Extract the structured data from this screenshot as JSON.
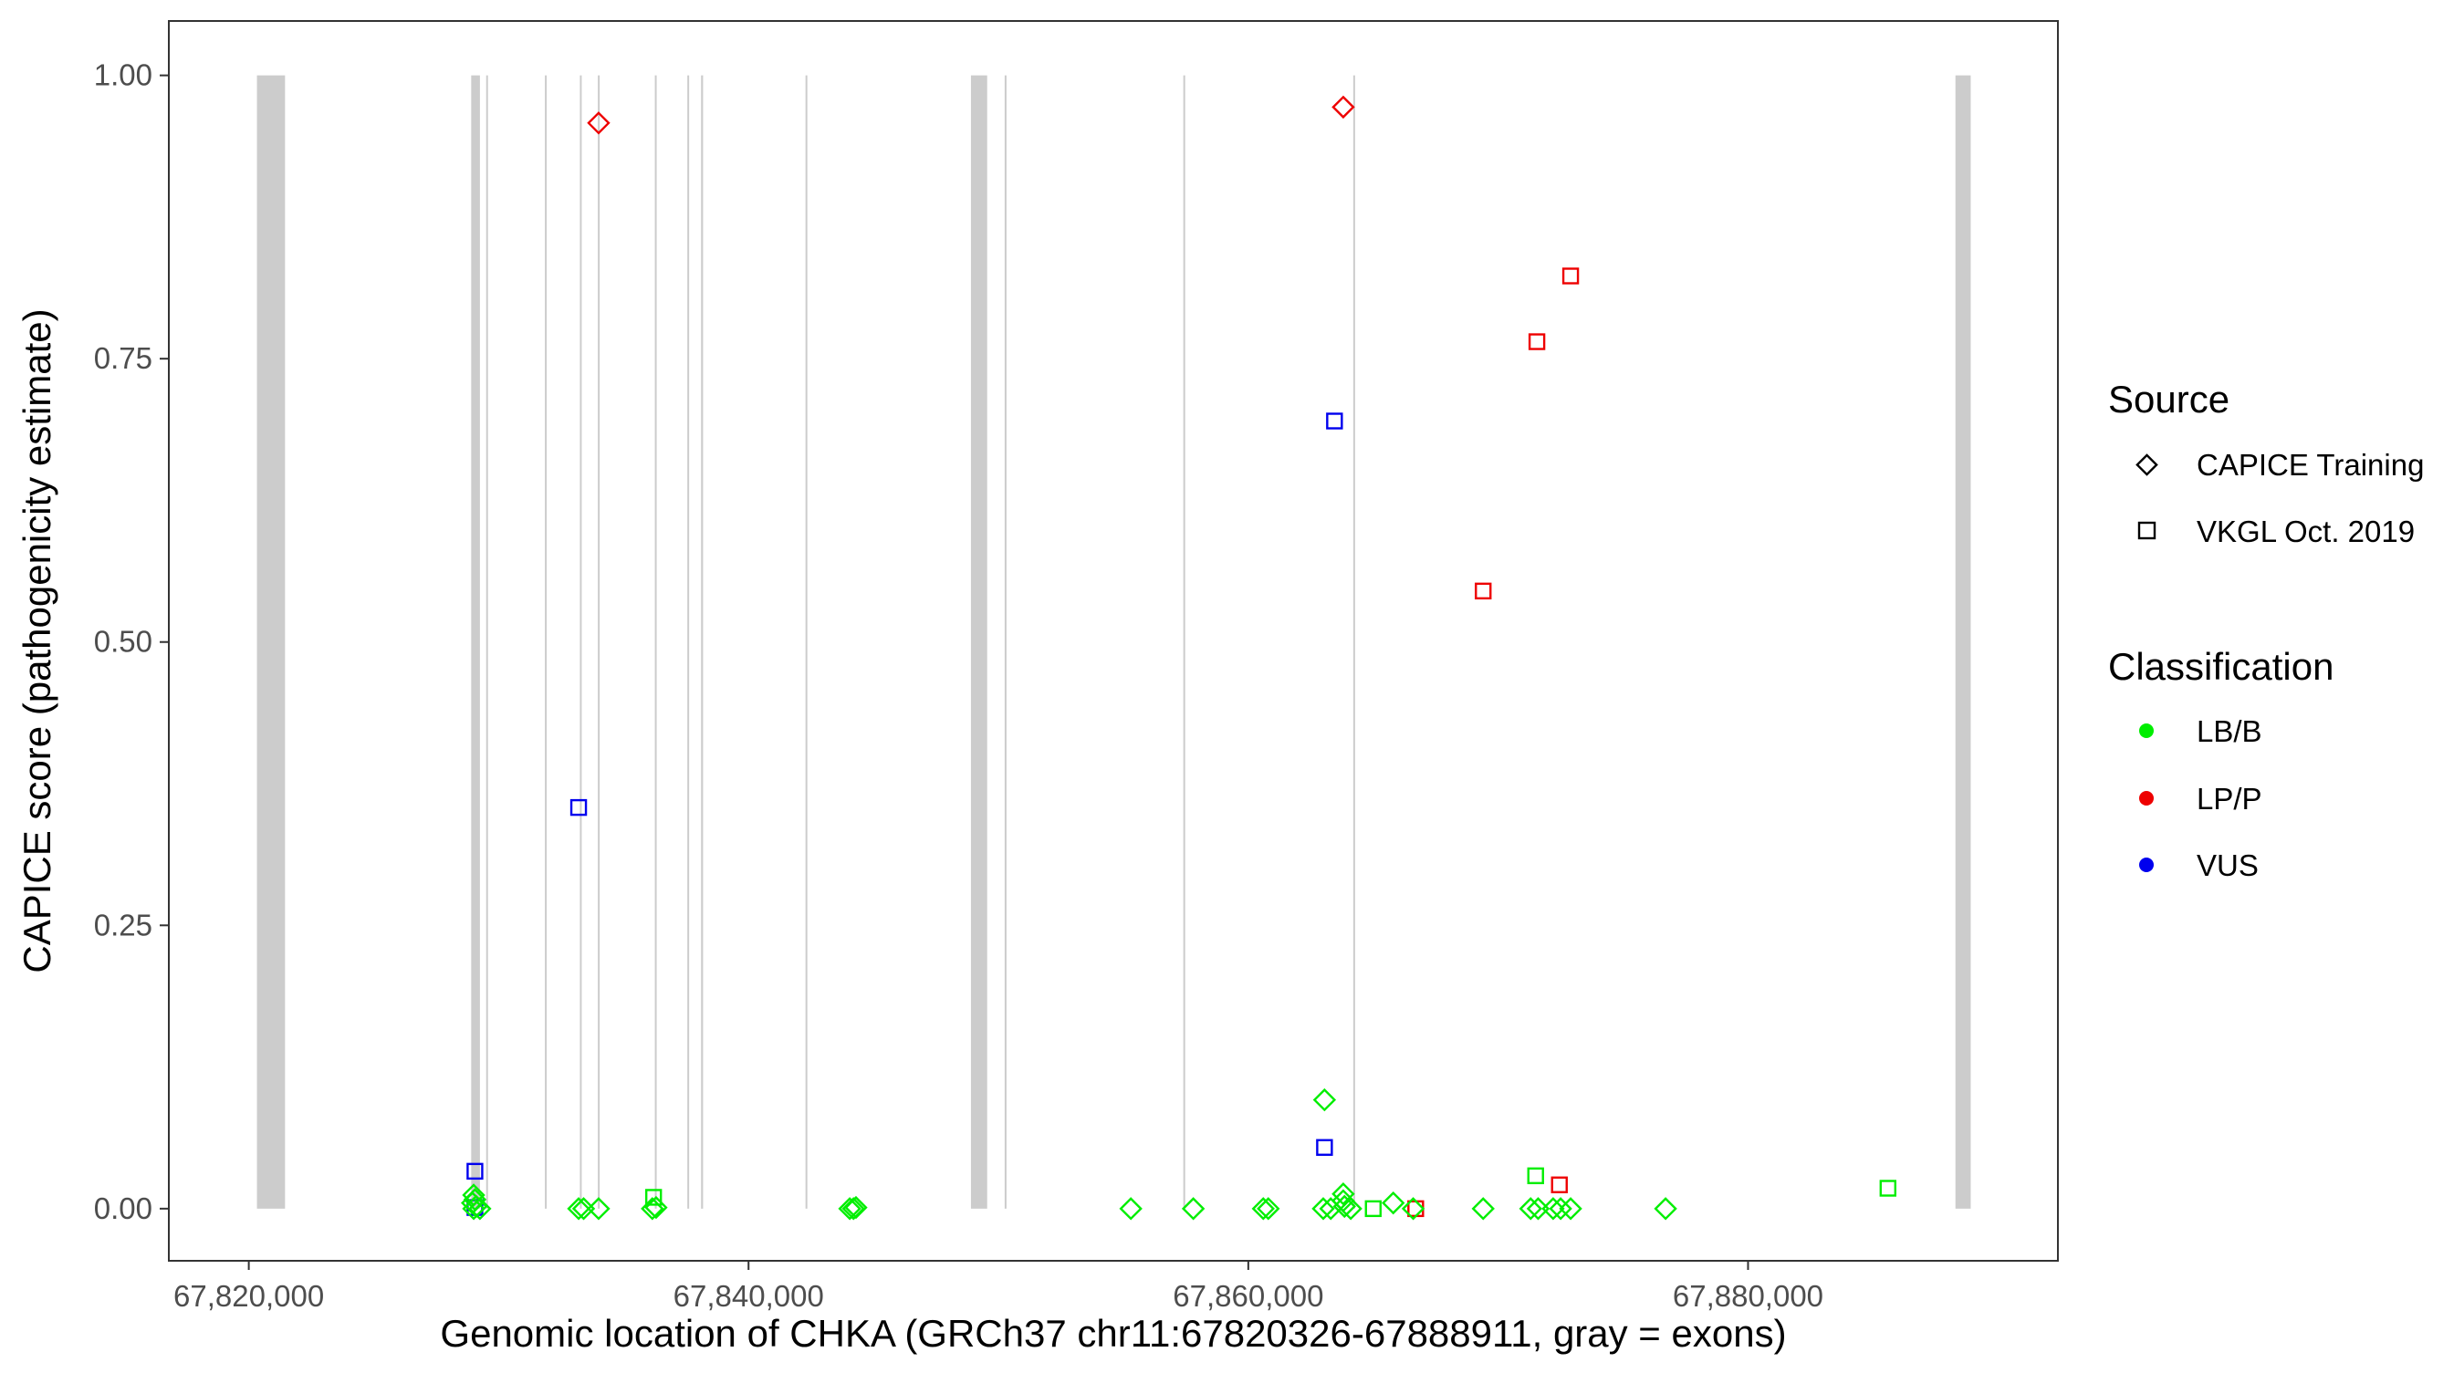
{
  "chart_data": {
    "type": "scatter",
    "xlabel": "Genomic location of CHKA (GRCh37 chr11:67820326-67888911, gray = exons)",
    "ylabel": "CAPICE score (pathogenicity estimate)",
    "xlim": [
      67816800,
      67892400
    ],
    "ylim": [
      -0.046,
      1.048
    ],
    "x_ticks": [
      67820000,
      67840000,
      67860000,
      67880000
    ],
    "x_tick_labels": [
      "67,820,000",
      "67,840,000",
      "67,860,000",
      "67,880,000"
    ],
    "y_ticks": [
      0,
      0.25,
      0.5,
      0.75,
      1
    ],
    "y_tick_labels": [
      "0.00",
      "0.25",
      "0.50",
      "0.75",
      "1.00"
    ],
    "grid": false,
    "exons": [
      {
        "start": 67820326,
        "end": 67821450
      },
      {
        "start": 67828900,
        "end": 67829250
      },
      {
        "start": 67829500,
        "end": 67829560
      },
      {
        "start": 67831850,
        "end": 67831880
      },
      {
        "start": 67833250,
        "end": 67833280
      },
      {
        "start": 67833970,
        "end": 67834000
      },
      {
        "start": 67836250,
        "end": 67836280
      },
      {
        "start": 67837550,
        "end": 67837580
      },
      {
        "start": 67838100,
        "end": 67838180
      },
      {
        "start": 67842280,
        "end": 67842310
      },
      {
        "start": 67848900,
        "end": 67849550
      },
      {
        "start": 67850250,
        "end": 67850280
      },
      {
        "start": 67857400,
        "end": 67857430
      },
      {
        "start": 67864200,
        "end": 67864230
      },
      {
        "start": 67888300,
        "end": 67888911
      }
    ],
    "exon_color": "#cccccc",
    "legend": {
      "position": "right",
      "source": {
        "title": "Source",
        "items": [
          {
            "label": "CAPICE Training",
            "shape": "diamond"
          },
          {
            "label": "VKGL Oct. 2019",
            "shape": "square"
          }
        ]
      },
      "classification": {
        "title": "Classification",
        "items": [
          {
            "label": "LB/B",
            "color": "#00ee00"
          },
          {
            "label": "LP/P",
            "color": "#ee0000"
          },
          {
            "label": "VUS",
            "color": "#0000ee"
          }
        ]
      }
    },
    "points": [
      {
        "x": 67834000,
        "y": 0.958,
        "shape": "diamond",
        "class": "LP/P"
      },
      {
        "x": 67863800,
        "y": 0.972,
        "shape": "diamond",
        "class": "LP/P"
      },
      {
        "x": 67872900,
        "y": 0.823,
        "shape": "square",
        "class": "LP/P"
      },
      {
        "x": 67871550,
        "y": 0.765,
        "shape": "square",
        "class": "LP/P"
      },
      {
        "x": 67869400,
        "y": 0.545,
        "shape": "square",
        "class": "LP/P"
      },
      {
        "x": 67872450,
        "y": 0.021,
        "shape": "square",
        "class": "LP/P"
      },
      {
        "x": 67866700,
        "y": 0.0,
        "shape": "square",
        "class": "LP/P"
      },
      {
        "x": 67863450,
        "y": 0.695,
        "shape": "square",
        "class": "VUS"
      },
      {
        "x": 67833200,
        "y": 0.354,
        "shape": "square",
        "class": "VUS"
      },
      {
        "x": 67863050,
        "y": 0.054,
        "shape": "square",
        "class": "VUS"
      },
      {
        "x": 67829050,
        "y": 0.033,
        "shape": "square",
        "class": "VUS"
      },
      {
        "x": 67829050,
        "y": 0.001,
        "shape": "square",
        "class": "VUS"
      },
      {
        "x": 67863050,
        "y": 0.096,
        "shape": "diamond",
        "class": "LB/B"
      },
      {
        "x": 67863800,
        "y": 0.013,
        "shape": "diamond",
        "class": "LB/B"
      },
      {
        "x": 67863800,
        "y": 0.007,
        "shape": "diamond",
        "class": "LB/B"
      },
      {
        "x": 67863850,
        "y": 0.002,
        "shape": "diamond",
        "class": "LB/B"
      },
      {
        "x": 67863000,
        "y": 0.0,
        "shape": "diamond",
        "class": "LB/B"
      },
      {
        "x": 67863300,
        "y": 0.0,
        "shape": "diamond",
        "class": "LB/B"
      },
      {
        "x": 67864100,
        "y": 0.0,
        "shape": "diamond",
        "class": "LB/B"
      },
      {
        "x": 67829000,
        "y": 0.012,
        "shape": "diamond",
        "class": "LB/B"
      },
      {
        "x": 67829050,
        "y": 0.008,
        "shape": "diamond",
        "class": "LB/B"
      },
      {
        "x": 67828950,
        "y": 0.005,
        "shape": "diamond",
        "class": "LB/B"
      },
      {
        "x": 67829100,
        "y": 0.002,
        "shape": "diamond",
        "class": "LB/B"
      },
      {
        "x": 67829000,
        "y": 0.0,
        "shape": "diamond",
        "class": "LB/B"
      },
      {
        "x": 67829250,
        "y": 0.0,
        "shape": "diamond",
        "class": "LB/B"
      },
      {
        "x": 67833200,
        "y": 0.0,
        "shape": "diamond",
        "class": "LB/B"
      },
      {
        "x": 67833400,
        "y": 0.0,
        "shape": "diamond",
        "class": "LB/B"
      },
      {
        "x": 67834000,
        "y": 0.0,
        "shape": "diamond",
        "class": "LB/B"
      },
      {
        "x": 67836150,
        "y": 0.0,
        "shape": "diamond",
        "class": "LB/B"
      },
      {
        "x": 67836300,
        "y": 0.001,
        "shape": "diamond",
        "class": "LB/B"
      },
      {
        "x": 67836200,
        "y": 0.01,
        "shape": "square",
        "class": "LB/B"
      },
      {
        "x": 67844050,
        "y": 0.0,
        "shape": "diamond",
        "class": "LB/B"
      },
      {
        "x": 67844200,
        "y": 0.0,
        "shape": "diamond",
        "class": "LB/B"
      },
      {
        "x": 67844300,
        "y": 0.001,
        "shape": "diamond",
        "class": "LB/B"
      },
      {
        "x": 67855300,
        "y": 0.0,
        "shape": "diamond",
        "class": "LB/B"
      },
      {
        "x": 67857800,
        "y": 0.0,
        "shape": "diamond",
        "class": "LB/B"
      },
      {
        "x": 67860600,
        "y": 0.0,
        "shape": "diamond",
        "class": "LB/B"
      },
      {
        "x": 67860800,
        "y": 0.0,
        "shape": "diamond",
        "class": "LB/B"
      },
      {
        "x": 67865000,
        "y": 0.0,
        "shape": "square",
        "class": "LB/B"
      },
      {
        "x": 67865800,
        "y": 0.005,
        "shape": "diamond",
        "class": "LB/B"
      },
      {
        "x": 67866600,
        "y": 0.0,
        "shape": "diamond",
        "class": "LB/B"
      },
      {
        "x": 67869400,
        "y": 0.0,
        "shape": "diamond",
        "class": "LB/B"
      },
      {
        "x": 67871500,
        "y": 0.029,
        "shape": "square",
        "class": "LB/B"
      },
      {
        "x": 67871300,
        "y": 0.0,
        "shape": "diamond",
        "class": "LB/B"
      },
      {
        "x": 67871600,
        "y": 0.0,
        "shape": "diamond",
        "class": "LB/B"
      },
      {
        "x": 67872200,
        "y": 0.0,
        "shape": "diamond",
        "class": "LB/B"
      },
      {
        "x": 67872500,
        "y": 0.0,
        "shape": "diamond",
        "class": "LB/B"
      },
      {
        "x": 67872900,
        "y": 0.0,
        "shape": "diamond",
        "class": "LB/B"
      },
      {
        "x": 67876700,
        "y": 0.0,
        "shape": "diamond",
        "class": "LB/B"
      },
      {
        "x": 67885600,
        "y": 0.018,
        "shape": "square",
        "class": "LB/B"
      }
    ]
  }
}
